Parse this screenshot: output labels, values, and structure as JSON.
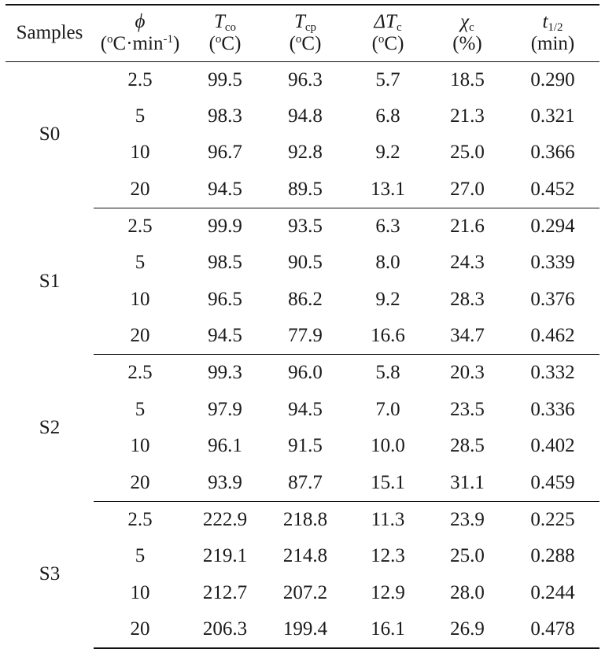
{
  "headers": {
    "samples": "Samples",
    "phi": {
      "symbol": "ϕ",
      "unit_pre": "(",
      "unit_o": "o",
      "unit_mid": "C·min",
      "unit_exp": "-1",
      "unit_post": ")"
    },
    "tco": {
      "sym": "T",
      "sub": "co",
      "unit_pre": "(",
      "unit_o": "o",
      "unit_post": "C)"
    },
    "tcp": {
      "sym": "T",
      "sub": "cp",
      "unit_pre": "(",
      "unit_o": "o",
      "unit_post": "C)"
    },
    "dtc": {
      "sym": "ΔT",
      "sub": "c",
      "unit_pre": "(",
      "unit_o": "o",
      "unit_post": "C)"
    },
    "chi": {
      "sym": "χ",
      "sub": "c",
      "unit": "(%)"
    },
    "thalf": {
      "sym": "t",
      "sub": "1/2",
      "unit": "(min)"
    }
  },
  "groups": [
    {
      "sample": "S0",
      "rows": [
        [
          "2.5",
          "99.5",
          "96.3",
          "5.7",
          "18.5",
          "0.290"
        ],
        [
          "5",
          "98.3",
          "94.8",
          "6.8",
          "21.3",
          "0.321"
        ],
        [
          "10",
          "96.7",
          "92.8",
          "9.2",
          "25.0",
          "0.366"
        ],
        [
          "20",
          "94.5",
          "89.5",
          "13.1",
          "27.0",
          "0.452"
        ]
      ]
    },
    {
      "sample": "S1",
      "rows": [
        [
          "2.5",
          "99.9",
          "93.5",
          "6.3",
          "21.6",
          "0.294"
        ],
        [
          "5",
          "98.5",
          "90.5",
          "8.0",
          "24.3",
          "0.339"
        ],
        [
          "10",
          "96.5",
          "86.2",
          "9.2",
          "28.3",
          "0.376"
        ],
        [
          "20",
          "94.5",
          "77.9",
          "16.6",
          "34.7",
          "0.462"
        ]
      ]
    },
    {
      "sample": "S2",
      "rows": [
        [
          "2.5",
          "99.3",
          "96.0",
          "5.8",
          "20.3",
          "0.332"
        ],
        [
          "5",
          "97.9",
          "94.5",
          "7.0",
          "23.5",
          "0.336"
        ],
        [
          "10",
          "96.1",
          "91.5",
          "10.0",
          "28.5",
          "0.402"
        ],
        [
          "20",
          "93.9",
          "87.7",
          "15.1",
          "31.1",
          "0.459"
        ]
      ]
    },
    {
      "sample": "S3",
      "rows": [
        [
          "2.5",
          "222.9",
          "218.8",
          "11.3",
          "23.9",
          "0.225"
        ],
        [
          "5",
          "219.1",
          "214.8",
          "12.3",
          "25.0",
          "0.288"
        ],
        [
          "10",
          "212.7",
          "207.2",
          "12.9",
          "28.0",
          "0.244"
        ],
        [
          "20",
          "206.3",
          "199.4",
          "16.1",
          "26.9",
          "0.478"
        ]
      ]
    }
  ]
}
